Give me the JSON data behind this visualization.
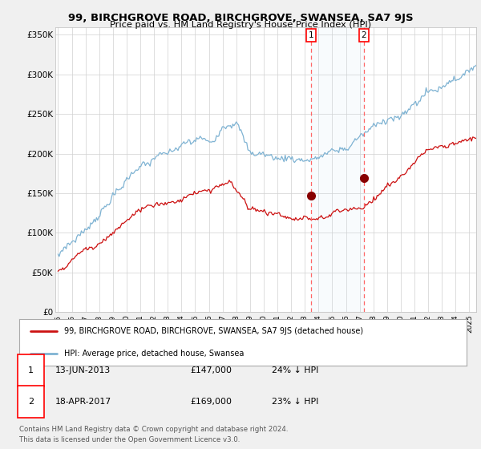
{
  "title": "99, BIRCHGROVE ROAD, BIRCHGROVE, SWANSEA, SA7 9JS",
  "subtitle": "Price paid vs. HM Land Registry's House Price Index (HPI)",
  "ylabel_ticks": [
    "£0",
    "£50K",
    "£100K",
    "£150K",
    "£200K",
    "£250K",
    "£300K",
    "£350K"
  ],
  "ytick_values": [
    0,
    50000,
    100000,
    150000,
    200000,
    250000,
    300000,
    350000
  ],
  "ylim": [
    0,
    360000
  ],
  "xlim_start": 1994.8,
  "xlim_end": 2025.5,
  "background_color": "#f0f0f0",
  "plot_bg_color": "#ffffff",
  "hpi_color": "#7fb3d3",
  "price_color": "#cc1111",
  "ann1_x": 2013.45,
  "ann1_y": 147000,
  "ann2_x": 2017.29,
  "ann2_y": 169000,
  "legend_line1": "99, BIRCHGROVE ROAD, BIRCHGROVE, SWANSEA, SA7 9JS (detached house)",
  "legend_line2": "HPI: Average price, detached house, Swansea",
  "footer1": "Contains HM Land Registry data © Crown copyright and database right 2024.",
  "footer2": "This data is licensed under the Open Government Licence v3.0.",
  "table_row1": [
    "1",
    "13-JUN-2013",
    "£147,000",
    "24% ↓ HPI"
  ],
  "table_row2": [
    "2",
    "18-APR-2017",
    "£169,000",
    "23% ↓ HPI"
  ]
}
